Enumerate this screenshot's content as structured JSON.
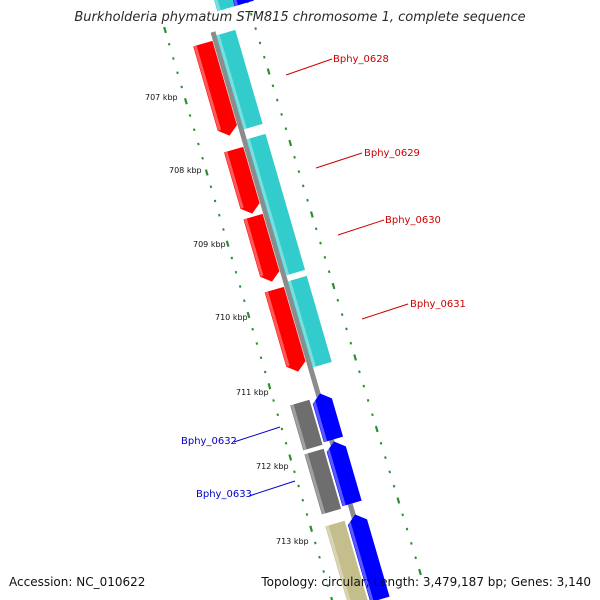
{
  "title": "Burkholderia phymatum STM815 chromosome 1, complete sequence",
  "footer": {
    "accession": "Accession: NC_010622",
    "summary": "Topology: circular; Length: 3,479,187 bp; Genes: 3,140"
  },
  "colors": {
    "background": "#ffffff",
    "backbone": "#8c8c8c",
    "ruler_dots": "#2f8f2f",
    "gene_red": "#ff0000",
    "gene_cyan": "#33cccc",
    "gene_blue": "#0000ff",
    "gene_gray": "#6e6e6e",
    "gene_khaki": "#c4be8c",
    "label_red": "#cc0000",
    "label_blue": "#0000cc"
  },
  "ruler_labels": [
    "707 kbp",
    "708 kbp",
    "709 kbp",
    "710 kbp",
    "711 kbp",
    "712 kbp",
    "713 kbp"
  ],
  "gene_labels": [
    {
      "id": "bphy-0628",
      "text": "Bphy_0628",
      "color": "red"
    },
    {
      "id": "bphy-0629",
      "text": "Bphy_0629",
      "color": "red"
    },
    {
      "id": "bphy-0630",
      "text": "Bphy_0630",
      "color": "red"
    },
    {
      "id": "bphy-0631",
      "text": "Bphy_0631",
      "color": "red"
    },
    {
      "id": "bphy-0632",
      "text": "Bphy_0632",
      "color": "blue"
    },
    {
      "id": "bphy-0633",
      "text": "Bphy_0633",
      "color": "blue"
    }
  ]
}
